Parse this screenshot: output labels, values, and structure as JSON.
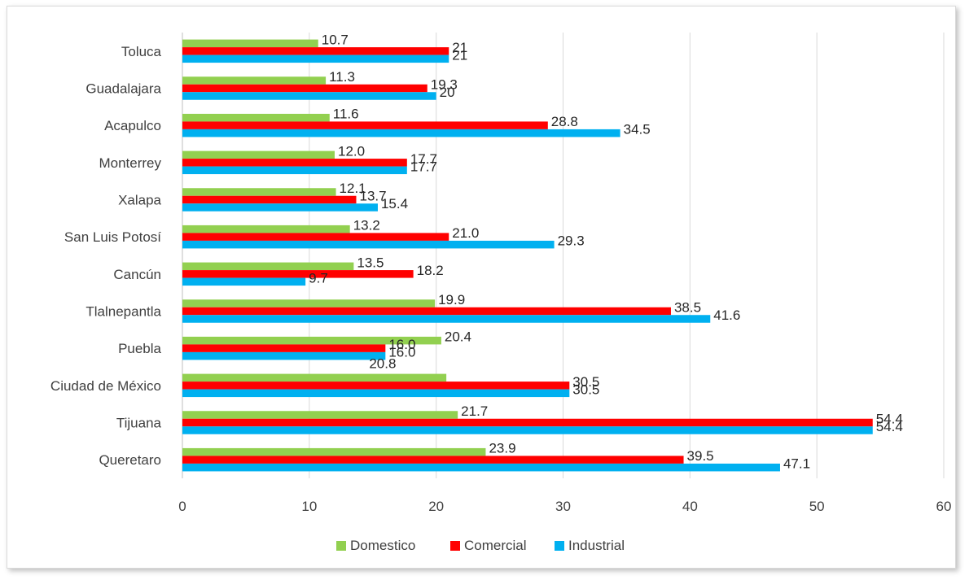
{
  "chart_data": {
    "type": "bar",
    "orientation": "horizontal",
    "title": "",
    "xlabel": "",
    "ylabel": "",
    "categories": [
      "Toluca",
      "Guadalajara",
      "Acapulco",
      "Monterrey",
      "Xalapa",
      "San Luis Potosí",
      "Cancún",
      "Tlalnepantla",
      "Puebla",
      "Ciudad de México",
      "Tijuana",
      "Queretaro"
    ],
    "series": [
      {
        "name": "Domestico",
        "color": "#92d050",
        "values": [
          10.7,
          11.3,
          11.6,
          12.0,
          12.1,
          13.2,
          13.5,
          19.9,
          20.4,
          20.8,
          21.7,
          23.9
        ],
        "labels": [
          "10.7",
          "11.3",
          "11.6",
          "12.0",
          "12.1",
          "13.2",
          "13.5",
          "19.9",
          "20.4",
          "",
          "21.7",
          "23.9"
        ]
      },
      {
        "name": "Comercial",
        "color": "#ff0000",
        "values": [
          21,
          19.3,
          28.8,
          17.7,
          13.7,
          21.0,
          18.2,
          38.5,
          16.0,
          30.5,
          54.4,
          39.5
        ],
        "labels": [
          "21",
          "19.3",
          "28.8",
          "17.7",
          "13.7",
          "21.0",
          "18.2",
          "38.5",
          "16.0",
          "30.5",
          "54.4",
          "39.5"
        ]
      },
      {
        "name": "Industrial",
        "color": "#00b0f0",
        "values": [
          21,
          20,
          34.5,
          17.7,
          15.4,
          29.3,
          9.7,
          41.6,
          16.0,
          30.5,
          54.4,
          47.1
        ],
        "labels": [
          "21",
          "20",
          "34.5",
          "17.7",
          "15.4",
          "29.3",
          "9.7",
          "41.6",
          "16.0",
          "30.5",
          "54.4",
          "47.1"
        ]
      }
    ],
    "extra_labels": [
      "20.8"
    ],
    "xlim": [
      0,
      60
    ],
    "xticks": [
      0,
      10,
      20,
      30,
      40,
      50,
      60
    ],
    "grid": true,
    "legend_position": "bottom"
  }
}
